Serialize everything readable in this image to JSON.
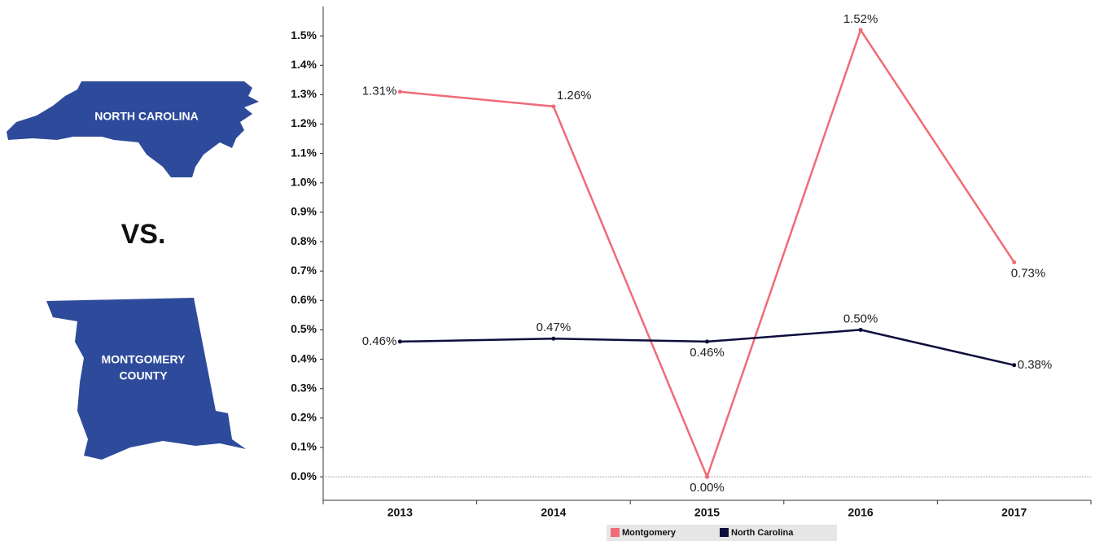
{
  "maps": {
    "state": "NORTH CAROLINA",
    "vs": "VS.",
    "county": [
      "MONTGOMERY",
      "COUNTY"
    ]
  },
  "chart_data": {
    "type": "line",
    "categories": [
      "2013",
      "2014",
      "2015",
      "2016",
      "2017"
    ],
    "series": [
      {
        "name": "Montgomery",
        "color": "#f06b77",
        "values": [
          1.31,
          1.26,
          0,
          1.52,
          0.73
        ],
        "value_labels": [
          "1.31%",
          "1.26%",
          "0.00%",
          "1.52%",
          "0.73%"
        ]
      },
      {
        "name": "North Carolina",
        "color": "#0d0d3d",
        "values": [
          0.46,
          0.47,
          0.46,
          0.5,
          0.38
        ],
        "value_labels": [
          "0.46%",
          "0.47%",
          "0.46%",
          "0.50%",
          "0.38%"
        ]
      }
    ],
    "ylim": [
      -0.08,
      1.6
    ],
    "yticks": [
      {
        "value": 0,
        "label": "0.0%"
      },
      {
        "value": 0.1,
        "label": "0.1%"
      },
      {
        "value": 0.2,
        "label": "0.2%"
      },
      {
        "value": 0.3,
        "label": "0.3%"
      },
      {
        "value": 0.4,
        "label": "0.4%"
      },
      {
        "value": 0.5,
        "label": "0.5%"
      },
      {
        "value": 0.6,
        "label": "0.6%"
      },
      {
        "value": 0.7,
        "label": "0.7%"
      },
      {
        "value": 0.8,
        "label": "0.8%"
      },
      {
        "value": 0.9,
        "label": "0.9%"
      },
      {
        "value": 1.0,
        "label": "1.0%"
      },
      {
        "value": 1.1,
        "label": "1.1%"
      },
      {
        "value": 1.2,
        "label": "1.2%"
      },
      {
        "value": 1.3,
        "label": "1.3%"
      },
      {
        "value": 1.4,
        "label": "1.4%"
      },
      {
        "value": 1.5,
        "label": "1.5%"
      }
    ],
    "grid": false,
    "legend": "bottom"
  }
}
